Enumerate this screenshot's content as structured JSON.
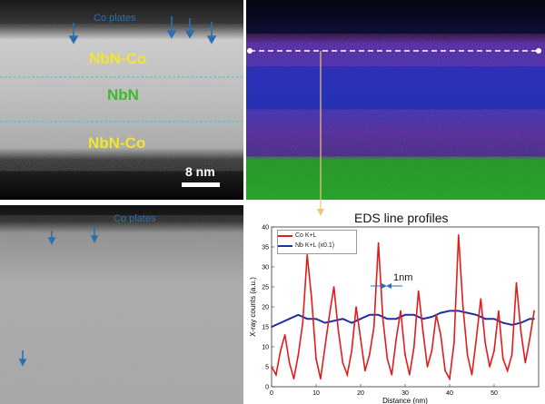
{
  "top_left": {
    "co_label": "Co plates",
    "layers": [
      "NbN-Co",
      "NbN",
      "NbN-Co"
    ],
    "scale_bar": "8 nm"
  },
  "bottom_left": {
    "co_label": "Co plates"
  },
  "eds_title": "EDS line profiles",
  "annotation": "1nm",
  "colors": {
    "co_series": "#e21b1b",
    "nb_series": "#1f2fa6",
    "layer_labels_outer": "#f2e530",
    "layer_label_middle": "#3dbb2c",
    "arrows": "#2b6fb2"
  },
  "chart_data": {
    "type": "line",
    "xlabel": "Distance (nm)",
    "ylabel": "X-ray counts (a.u.)",
    "xlim": [
      0,
      60
    ],
    "ylim": [
      0,
      40
    ],
    "xticks": [
      "0",
      "10",
      "20",
      "30",
      "40",
      "50"
    ],
    "yticks": [
      "0",
      "5",
      "10",
      "15",
      "20",
      "25",
      "30",
      "35",
      "40"
    ],
    "legend_placement": "top-left",
    "series": [
      {
        "name": "Co K+L",
        "x": [
          0,
          1,
          2,
          3,
          4,
          5,
          6,
          7,
          8,
          9,
          10,
          11,
          12,
          13,
          14,
          15,
          16,
          17,
          18,
          19,
          20,
          21,
          22,
          23,
          24,
          25,
          26,
          27,
          28,
          29,
          30,
          31,
          32,
          33,
          34,
          35,
          36,
          37,
          38,
          39,
          40,
          41,
          42,
          43,
          44,
          45,
          46,
          47,
          48,
          49,
          50,
          51,
          52,
          53,
          54,
          55,
          56,
          57,
          58,
          59
        ],
        "y": [
          5,
          3,
          9,
          13,
          6,
          2,
          8,
          16,
          33,
          22,
          7,
          2,
          10,
          18,
          25,
          14,
          6,
          3,
          9,
          20,
          12,
          4,
          8,
          15,
          36,
          17,
          7,
          3,
          12,
          19,
          8,
          3,
          10,
          24,
          14,
          5,
          9,
          18,
          13,
          4,
          2,
          11,
          38,
          20,
          8,
          3,
          12,
          22,
          11,
          5,
          9,
          19,
          7,
          4,
          8,
          26,
          14,
          6,
          12,
          19
        ]
      },
      {
        "name": "Nb K+L (x0.1)",
        "x": [
          0,
          2,
          4,
          6,
          8,
          10,
          12,
          14,
          16,
          18,
          20,
          22,
          24,
          26,
          28,
          30,
          32,
          34,
          36,
          38,
          40,
          42,
          44,
          46,
          48,
          50,
          52,
          54,
          56,
          58,
          59
        ],
        "y": [
          15,
          16,
          17,
          18,
          17,
          17,
          16,
          16.5,
          17,
          16,
          17,
          18,
          18,
          17,
          17,
          18,
          18,
          17,
          17.5,
          18.5,
          19,
          19,
          18.5,
          18,
          17,
          17,
          16,
          15.5,
          16,
          17,
          17
        ]
      }
    ]
  }
}
